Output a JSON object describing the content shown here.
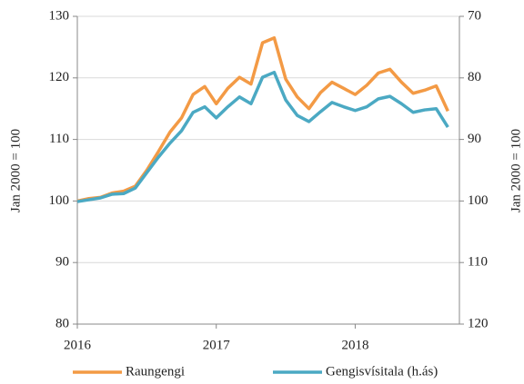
{
  "chart_data": {
    "type": "line",
    "x": [
      2016,
      2016.083,
      2016.167,
      2016.25,
      2016.333,
      2016.417,
      2016.5,
      2016.583,
      2016.667,
      2016.75,
      2016.833,
      2016.917,
      2017,
      2017.083,
      2017.167,
      2017.25,
      2017.333,
      2017.417,
      2017.5,
      2017.583,
      2017.667,
      2017.75,
      2017.833,
      2017.917,
      2018,
      2018.083,
      2018.167,
      2018.25,
      2018.333,
      2018.417,
      2018.5,
      2018.583,
      2018.667
    ],
    "xlim": [
      2016,
      2018.75
    ],
    "xticks": [
      2016,
      2017,
      2018
    ],
    "ylabel": "Jan 2000  = 100",
    "y2label": "Jan 2000  = 100",
    "ylim": [
      80,
      130
    ],
    "yticks": [
      80,
      90,
      100,
      110,
      120,
      130
    ],
    "y2lim": [
      120,
      70
    ],
    "y2ticks": [
      120,
      110,
      100,
      90,
      80,
      70
    ],
    "grid": true,
    "legend": "bottom",
    "series": [
      {
        "name": "Raungengi",
        "color": "#f39a45",
        "values": [
          100,
          100.4,
          100.6,
          101.3,
          101.6,
          102.4,
          105,
          108,
          111.2,
          113.5,
          117.3,
          118.6,
          115.8,
          118.3,
          120.1,
          119,
          125.7,
          126.5,
          119.8,
          116.9,
          115,
          117.6,
          119.3,
          118.3,
          117.3,
          118.8,
          120.8,
          121.4,
          119.3,
          117.5,
          118,
          118.7,
          114.6
        ]
      },
      {
        "name": "Gengisvísitala (h.ás)",
        "color": "#4ba9c3",
        "axis": "y2",
        "values": [
          100.1,
          99.8,
          99.5,
          98.9,
          98.8,
          97.9,
          95.4,
          92.9,
          90.6,
          88.6,
          85.6,
          84.7,
          86.5,
          84.7,
          83.1,
          84.2,
          79.9,
          79.1,
          83.6,
          86.1,
          87.1,
          85.5,
          84,
          84.7,
          85.3,
          84.7,
          83.4,
          83,
          84.2,
          85.6,
          85.2,
          85,
          88
        ]
      }
    ]
  }
}
